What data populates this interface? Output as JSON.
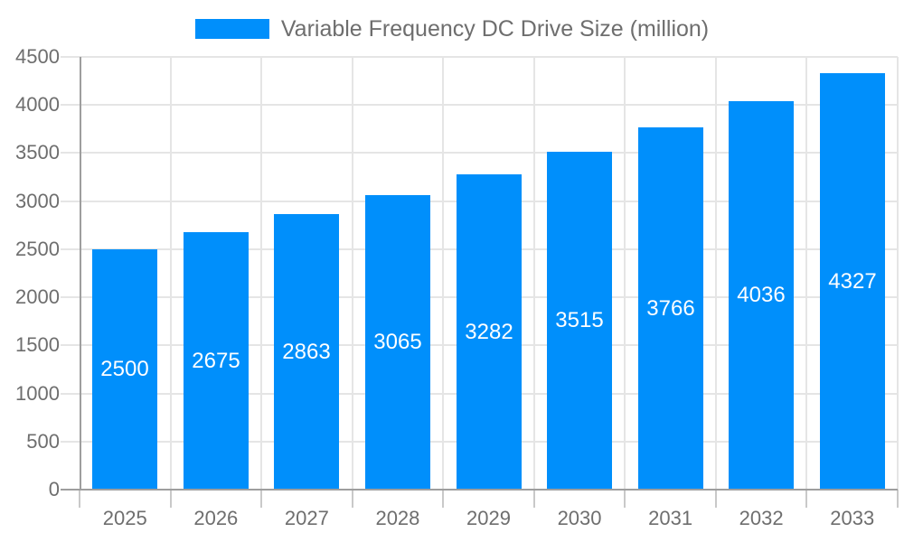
{
  "chart_data": {
    "type": "bar",
    "title": "Variable Frequency DC Drive Size (million)",
    "categories": [
      "2025",
      "2026",
      "2027",
      "2028",
      "2029",
      "2030",
      "2031",
      "2032",
      "2033"
    ],
    "series": [
      {
        "name": "Variable Frequency DC Drive Size (million)",
        "values": [
          2500,
          2675,
          2863,
          3065,
          3282,
          3515,
          3766,
          4036,
          4327
        ]
      }
    ],
    "xlabel": "",
    "ylabel": "",
    "ylim": [
      0,
      4500
    ],
    "yticks": [
      0,
      500,
      1000,
      1500,
      2000,
      2500,
      3000,
      3500,
      4000,
      4500
    ],
    "grid": true,
    "legend_position": "top",
    "bar_labels_visible": true
  },
  "colors": {
    "bar": "#008FFB",
    "bar_label": "#FFFFFF",
    "axis_text": "#6E6E6E",
    "legend_text": "#6E6E6E",
    "grid_line": "#E5E5E5",
    "axis_line": "#9E9E9E",
    "tick_line": "#C9C9C9",
    "background": "#FFFFFF"
  }
}
